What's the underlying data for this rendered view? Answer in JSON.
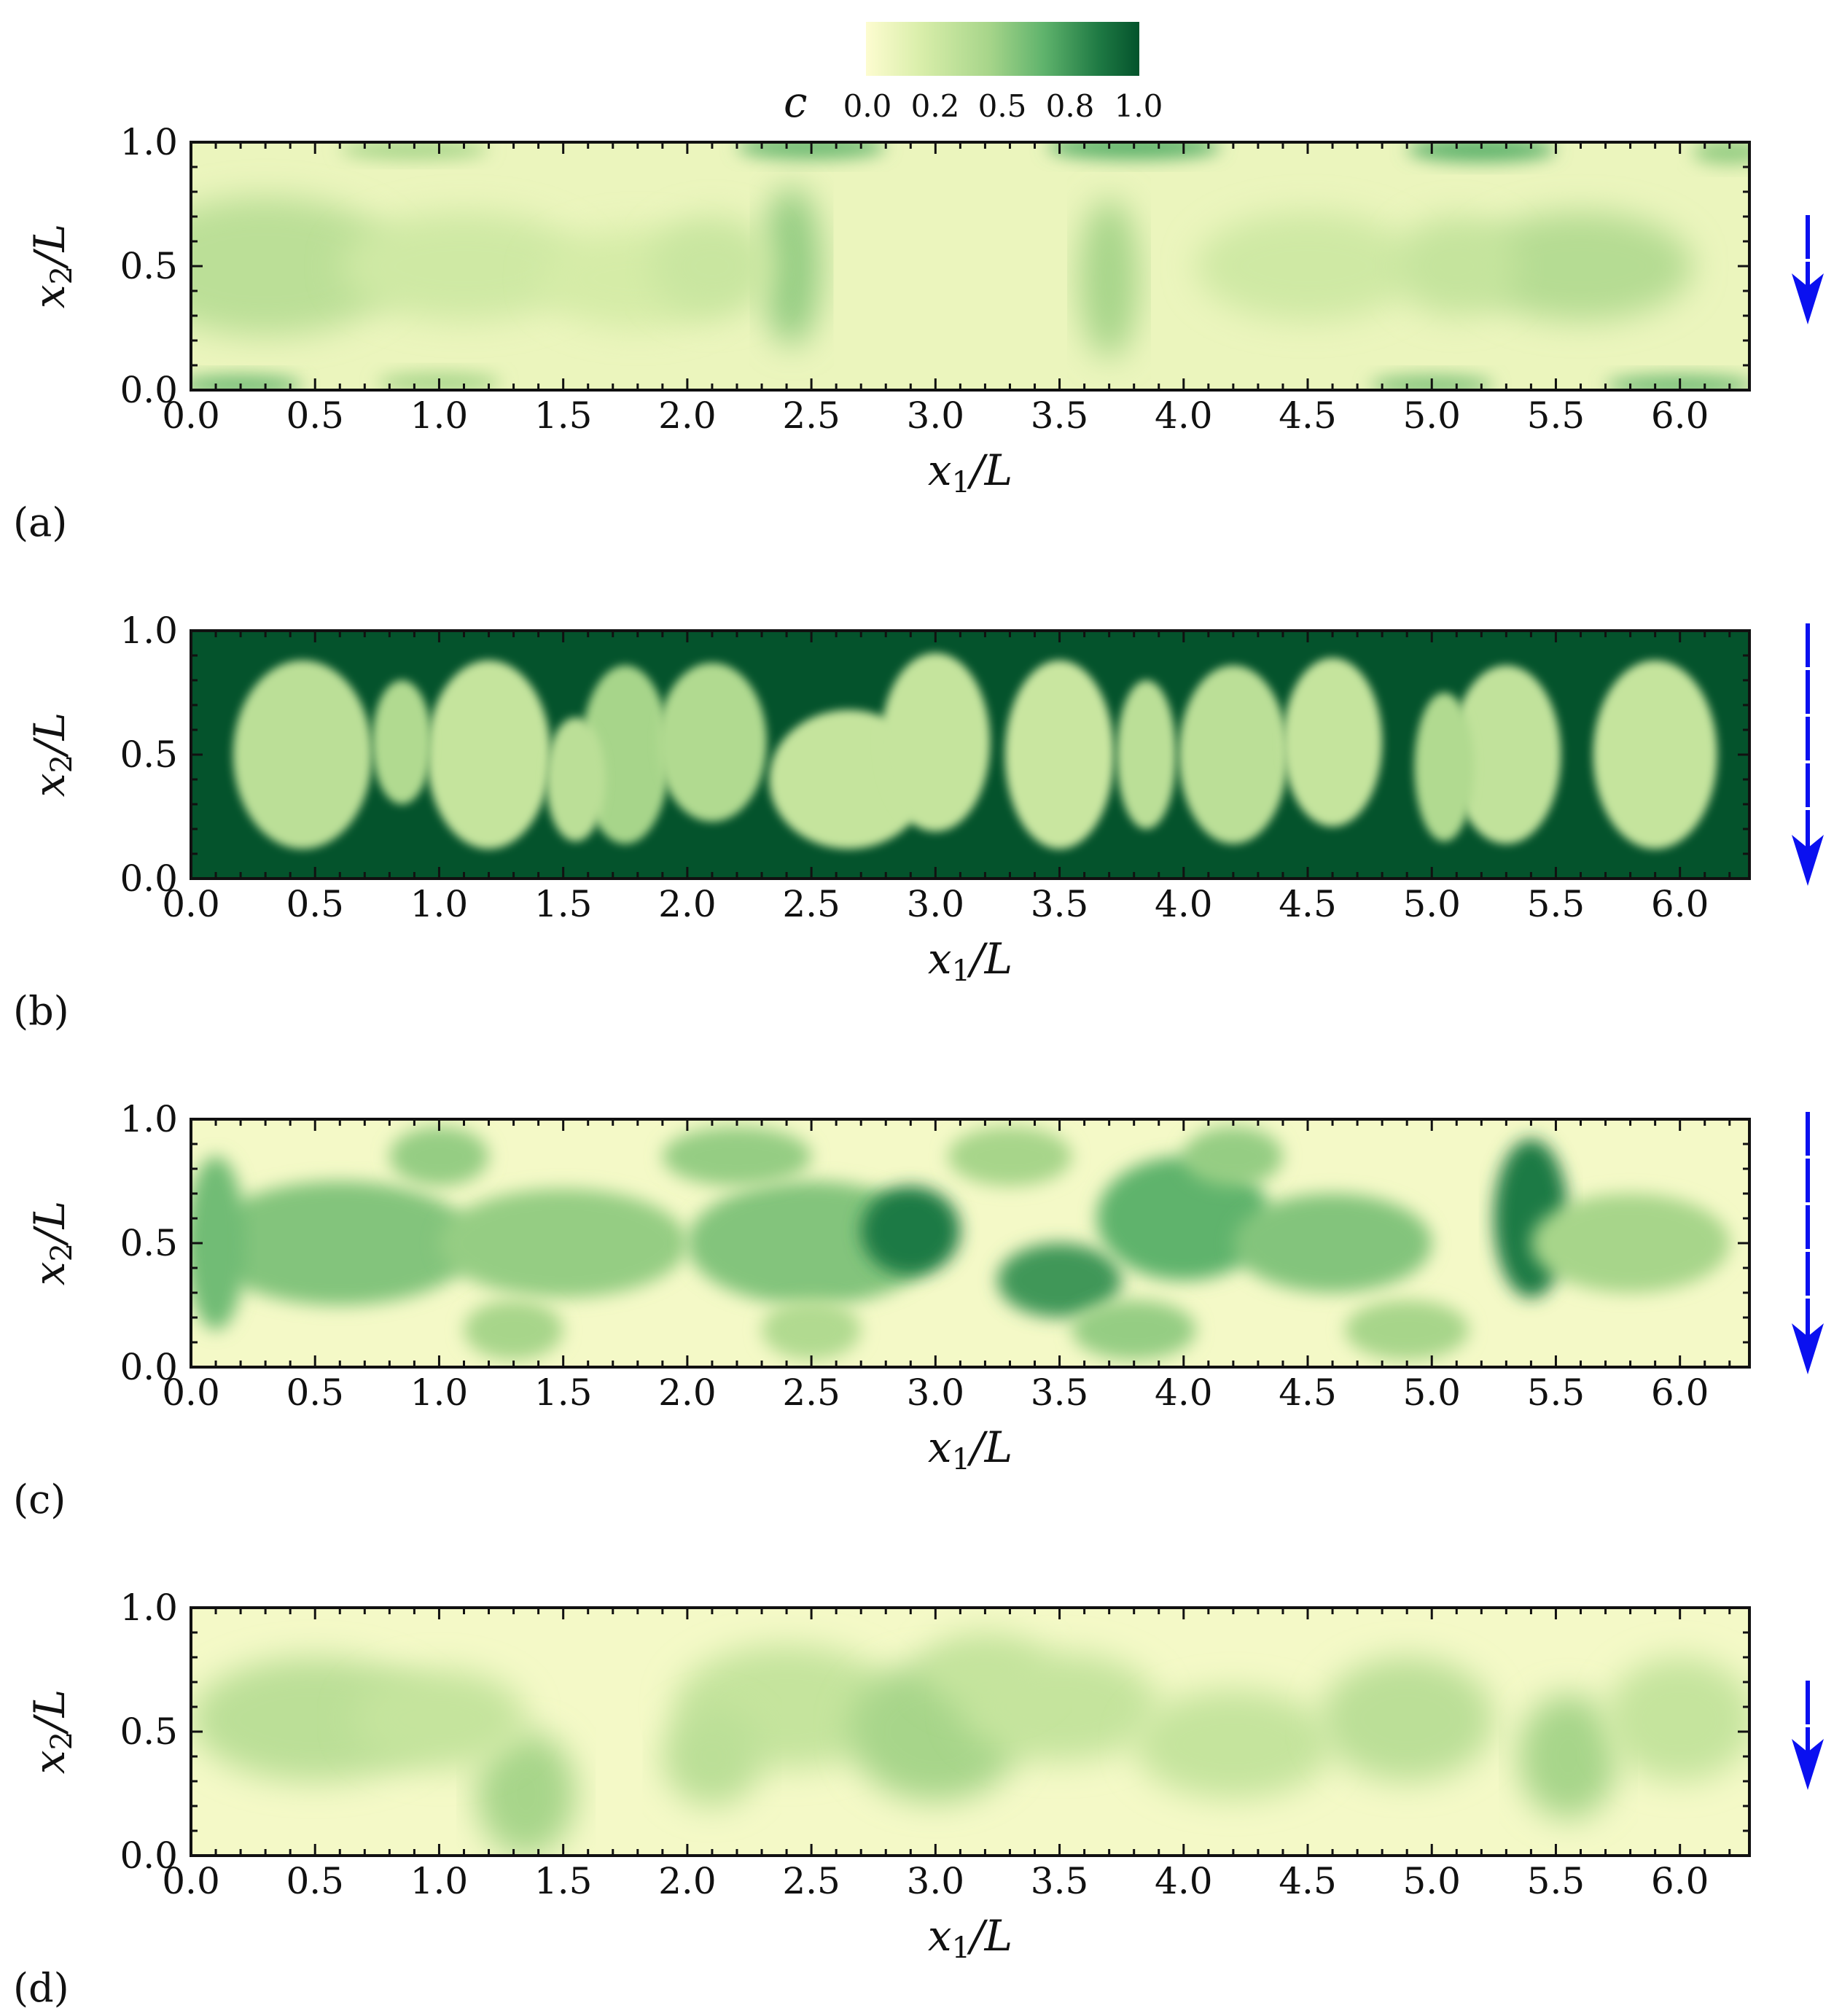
{
  "chart_data": {
    "type": "heatmap",
    "colorbar": {
      "label": "c",
      "ticks": [
        "0.0",
        "0.2",
        "0.5",
        "0.8",
        "1.0"
      ],
      "range": [
        0.0,
        1.0
      ],
      "colors": [
        "#fdfcd0",
        "#d9eeaa",
        "#a7d58a",
        "#5fb36c",
        "#1f7a44",
        "#04532c"
      ]
    },
    "panels": [
      {
        "id": "a",
        "label": "(a)",
        "xlabel": "x1/L",
        "ylabel": "x2/L",
        "xlim": [
          0.0,
          6.28
        ],
        "ylim": [
          0.0,
          1.0
        ],
        "xticks": [
          "0.0",
          "0.5",
          "1.0",
          "1.5",
          "2.0",
          "2.5",
          "3.0",
          "3.5",
          "4.0",
          "4.5",
          "5.0",
          "5.5",
          "6.0"
        ],
        "yticks": [
          "0.0",
          "0.5",
          "1.0"
        ],
        "background_c": 0.1,
        "arrow": "down"
      },
      {
        "id": "b",
        "label": "(b)",
        "xlabel": "x1/L",
        "ylabel": "x2/L",
        "xlim": [
          0.0,
          6.28
        ],
        "ylim": [
          0.0,
          1.0
        ],
        "xticks": [
          "0.0",
          "0.5",
          "1.0",
          "1.5",
          "2.0",
          "2.5",
          "3.0",
          "3.5",
          "4.0",
          "4.5",
          "5.0",
          "5.5",
          "6.0"
        ],
        "yticks": [
          "0.0",
          "0.5",
          "1.0"
        ],
        "background_c": 1.0,
        "arrow": "down"
      },
      {
        "id": "c",
        "label": "(c)",
        "xlabel": "x1/L",
        "ylabel": "x2/L",
        "xlim": [
          0.0,
          6.28
        ],
        "ylim": [
          0.0,
          1.0
        ],
        "xticks": [
          "0.0",
          "0.5",
          "1.0",
          "1.5",
          "2.0",
          "2.5",
          "3.0",
          "3.5",
          "4.0",
          "4.5",
          "5.0",
          "5.5",
          "6.0"
        ],
        "yticks": [
          "0.0",
          "0.5",
          "1.0"
        ],
        "background_c": 0.05,
        "arrow": "down"
      },
      {
        "id": "d",
        "label": "(d)",
        "xlabel": "x1/L",
        "ylabel": "x2/L",
        "xlim": [
          0.0,
          6.28
        ],
        "ylim": [
          0.0,
          1.0
        ],
        "xticks": [
          "0.0",
          "0.5",
          "1.0",
          "1.5",
          "2.0",
          "2.5",
          "3.0",
          "3.5",
          "4.0",
          "4.5",
          "5.0",
          "5.5",
          "6.0"
        ],
        "yticks": [
          "0.0",
          "0.5",
          "1.0"
        ],
        "background_c": 0.05,
        "arrow": "down"
      }
    ]
  }
}
